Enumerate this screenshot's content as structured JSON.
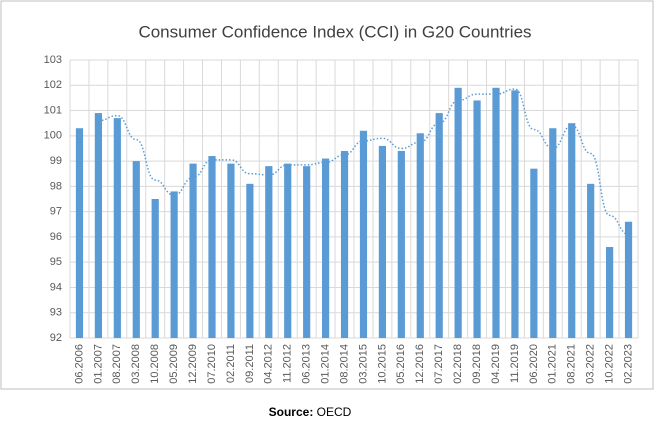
{
  "chart_data": {
    "type": "bar",
    "title": "Consumer Confidence Index (CCI) in G20 Countries",
    "categories": [
      "06.2006",
      "01.2007",
      "08.2007",
      "03.2008",
      "10.2008",
      "05.2009",
      "12.2009",
      "07.2010",
      "02.2011",
      "09.2011",
      "04.2012",
      "11.2012",
      "06.2013",
      "01.2014",
      "08.2014",
      "03.2015",
      "10.2015",
      "05.2016",
      "12.2016",
      "07.2017",
      "02.2018",
      "09.2018",
      "04.2019",
      "11.2019",
      "06.2020",
      "01.2021",
      "08.2021",
      "03.2022",
      "10.2022",
      "02.2023"
    ],
    "values": [
      100.3,
      100.9,
      100.7,
      99.0,
      97.5,
      97.8,
      98.9,
      99.2,
      98.9,
      98.1,
      98.8,
      98.9,
      98.8,
      99.1,
      99.4,
      100.2,
      99.6,
      99.4,
      100.1,
      100.9,
      101.9,
      101.4,
      101.9,
      101.8,
      98.7,
      100.3,
      100.5,
      98.1,
      95.6,
      96.6
    ],
    "color": "#5b9bd5",
    "ylim": [
      92,
      103
    ],
    "yticks": [
      92,
      93,
      94,
      95,
      96,
      97,
      98,
      99,
      100,
      101,
      102,
      103
    ],
    "grid": true,
    "trendline": {
      "type": "moving-average",
      "period": 2,
      "color": "#5b9bd5"
    },
    "source_label": "Source:",
    "source": "OECD"
  }
}
